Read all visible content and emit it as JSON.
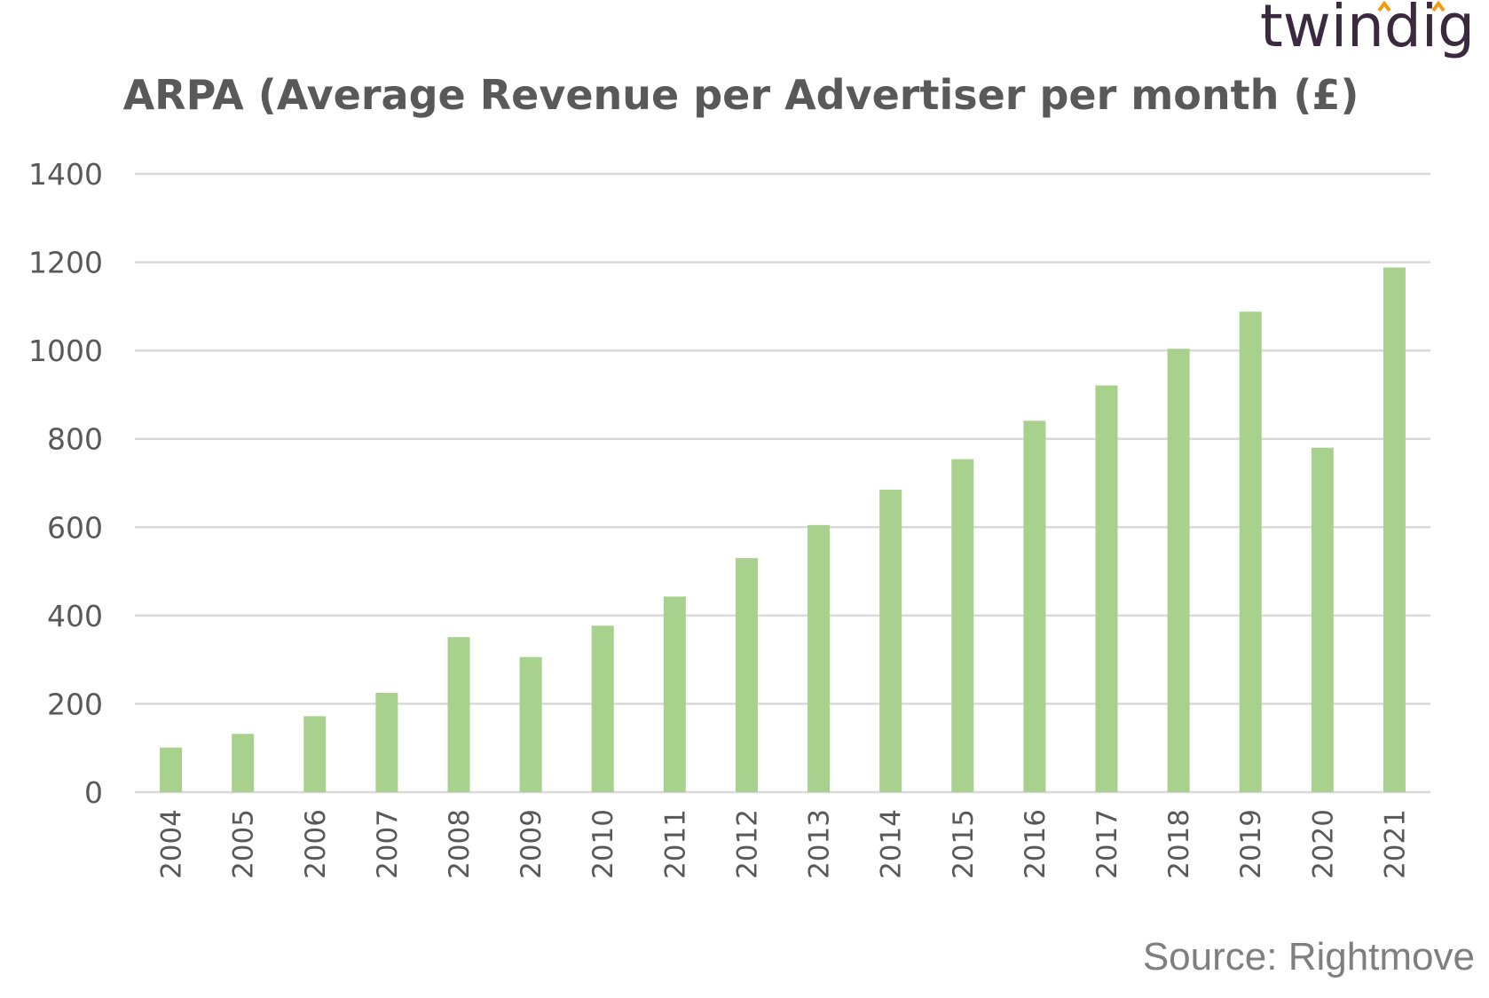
{
  "brand": {
    "name": "twindig",
    "accent_color": "#f39c12",
    "text_color": "#3b2a3f"
  },
  "source_note": "Source: Rightmove",
  "chart_data": {
    "type": "bar",
    "title": "ARPA (Average Revenue per Advertiser per month (£)",
    "xlabel": "",
    "ylabel": "",
    "categories": [
      "2004",
      "2005",
      "2006",
      "2007",
      "2008",
      "2009",
      "2010",
      "2011",
      "2012",
      "2013",
      "2014",
      "2015",
      "2016",
      "2017",
      "2018",
      "2019",
      "2020",
      "2021"
    ],
    "values": [
      101,
      132,
      172,
      225,
      351,
      306,
      377,
      443,
      530,
      605,
      685,
      754,
      841,
      921,
      1004,
      1088,
      780,
      1188
    ],
    "ylim": [
      0,
      1400
    ],
    "yticks": [
      0,
      200,
      400,
      600,
      800,
      1000,
      1200,
      1400
    ],
    "grid": true,
    "bar_color": "#a9d18e",
    "legend": "none"
  }
}
